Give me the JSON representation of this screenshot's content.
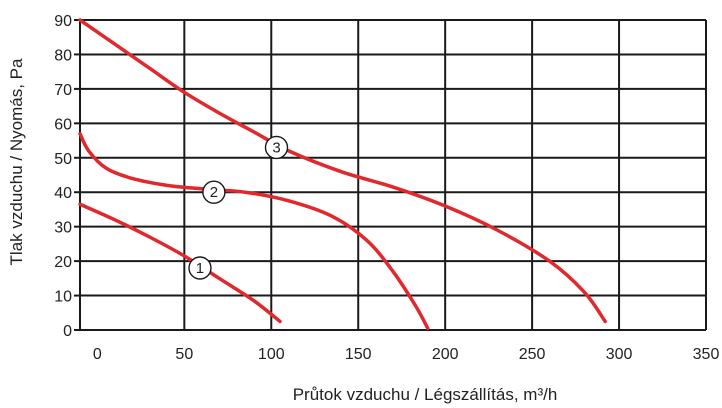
{
  "chart_data": {
    "type": "line",
    "xlabel": "Průtok vzduchu / Légszállítás, m³/h",
    "ylabel": "Tlak vzduchu / Nyomás, Pa",
    "xlim": [
      -10,
      350
    ],
    "ylim": [
      0,
      90
    ],
    "x_ticks": [
      0,
      50,
      100,
      150,
      200,
      250,
      300,
      350
    ],
    "y_ticks": [
      0,
      10,
      20,
      30,
      40,
      50,
      60,
      70,
      80,
      90
    ],
    "grid": true,
    "line_color": "#e0282d",
    "series": [
      {
        "name": "1",
        "label_at": [
          59,
          18
        ],
        "points": [
          [
            -10,
            36.5
          ],
          [
            10,
            32
          ],
          [
            30,
            27
          ],
          [
            50,
            21.5
          ],
          [
            70,
            15
          ],
          [
            90,
            8.5
          ],
          [
            105,
            2.5
          ]
        ]
      },
      {
        "name": "2",
        "label_at": [
          67,
          40
        ],
        "points": [
          [
            -10,
            57
          ],
          [
            -5,
            52
          ],
          [
            5,
            47
          ],
          [
            20,
            44
          ],
          [
            40,
            42
          ],
          [
            60,
            41
          ],
          [
            85,
            40
          ],
          [
            110,
            37.5
          ],
          [
            135,
            33
          ],
          [
            155,
            26
          ],
          [
            170,
            17
          ],
          [
            183,
            7
          ],
          [
            190,
            0.5
          ]
        ]
      },
      {
        "name": "3",
        "label_at": [
          103,
          53
        ],
        "points": [
          [
            -10,
            90
          ],
          [
            10,
            83
          ],
          [
            30,
            76
          ],
          [
            50,
            69
          ],
          [
            70,
            63
          ],
          [
            90,
            57.5
          ],
          [
            110,
            52
          ],
          [
            140,
            46
          ],
          [
            170,
            41.5
          ],
          [
            200,
            36
          ],
          [
            230,
            29
          ],
          [
            260,
            20
          ],
          [
            280,
            11
          ],
          [
            292,
            2.5
          ]
        ]
      }
    ]
  }
}
